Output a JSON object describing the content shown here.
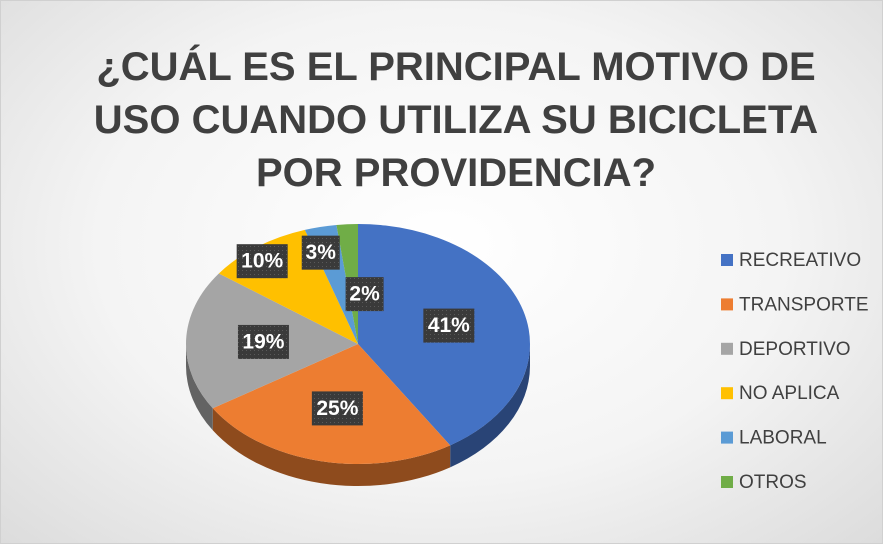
{
  "chart_data": {
    "type": "pie",
    "title": "¿CUÁL ES EL PRINCIPAL MOTIVO DE\nUSO CUANDO UTILIZA SU BICICLETA\nPOR PROVIDENCIA?",
    "categories": [
      "RECREATIVO",
      "TRANSPORTE",
      "DEPORTIVO",
      "NO APLICA",
      "LABORAL",
      "OTROS"
    ],
    "values": [
      41,
      25,
      19,
      10,
      3,
      2
    ],
    "value_labels": [
      "41%",
      "25%",
      "19%",
      "10%",
      "3%",
      "2%"
    ],
    "colors": [
      "#4472c4",
      "#ed7d31",
      "#a5a5a5",
      "#ffc000",
      "#5b9bd5",
      "#70ad47"
    ],
    "legend": "right"
  }
}
